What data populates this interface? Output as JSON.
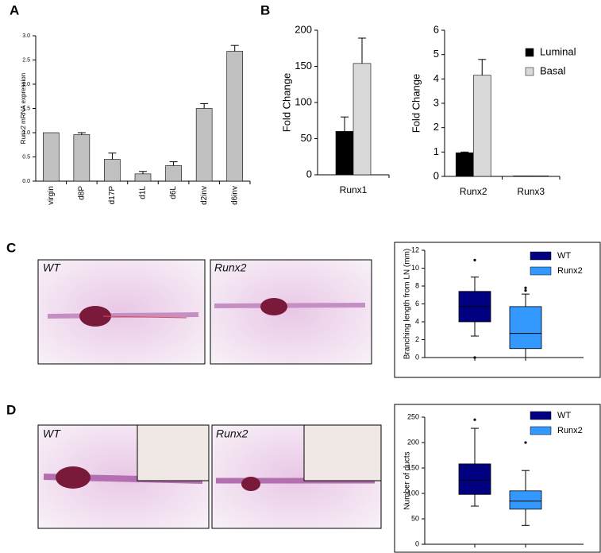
{
  "panel_labels": [
    "A",
    "B",
    "C",
    "D"
  ],
  "image_labels": {
    "C": [
      "WT",
      "Runx2"
    ],
    "D": [
      "WT",
      "Runx2"
    ]
  },
  "chart_data": [
    {
      "type": "bar",
      "y_label": "Runx2 mRNA expression",
      "categories": [
        "virgin",
        "d8P",
        "d17P",
        "d1L",
        "d6L",
        "d2inv",
        "d6inv"
      ],
      "values": [
        1.0,
        0.96,
        0.45,
        0.15,
        0.32,
        1.5,
        2.68
      ],
      "errors": [
        0,
        0.04,
        0.13,
        0.05,
        0.08,
        0.1,
        0.12
      ],
      "color": "#c0c0c0",
      "ylim": [
        0,
        3.0
      ],
      "yticks": [
        {
          "value": 0,
          "label": "0.0"
        },
        {
          "value": 0.5,
          "label": "0.5"
        },
        {
          "value": 1,
          "label": "1.0"
        },
        {
          "value": 1.5,
          "label": "1.5"
        },
        {
          "value": 2,
          "label": "2.0"
        },
        {
          "value": 2.5,
          "label": "2.5"
        },
        {
          "value": 3,
          "label": "3.0"
        }
      ]
    },
    {
      "type": "bar",
      "y_label": "Fold Change",
      "categories": [
        "Runx1"
      ],
      "series": [
        {
          "color": "#000000",
          "values": [
            60
          ],
          "errors": [
            20
          ]
        },
        {
          "color": "#d9d9d9",
          "values": [
            154
          ],
          "errors": [
            35
          ]
        }
      ],
      "ylim": [
        0,
        200
      ],
      "yticks": [
        0,
        50,
        100,
        150,
        200
      ]
    },
    {
      "type": "bar",
      "y_label": "Fold Change",
      "categories": [
        "Runx2",
        "Runx3"
      ],
      "series": [
        {
          "name": "Luminal",
          "color": "#000000",
          "values": [
            0.97,
            0.02
          ],
          "errors": [
            0.03,
            0
          ]
        },
        {
          "name": "Basal",
          "color": "#d9d9d9",
          "values": [
            4.15,
            0.02
          ],
          "errors": [
            0.65,
            0
          ]
        }
      ],
      "ylim": [
        0,
        6
      ],
      "yticks": [
        0,
        1,
        2,
        3,
        4,
        5,
        6
      ]
    },
    {
      "type": "box",
      "y_label": "Branching length from LN (mm)",
      "series": [
        {
          "name": "WT",
          "color": "#000080",
          "whislo": 2.4,
          "q1": 4.0,
          "med": 5.7,
          "q3": 7.4,
          "whishi": 9.0,
          "fliers": [
            0,
            10.9
          ]
        },
        {
          "name": "Runx2",
          "color": "#3399ff",
          "whislo": 0,
          "q1": 1.0,
          "med": 2.7,
          "q3": 5.7,
          "whishi": 7.1,
          "fliers": [
            7.5,
            7.8
          ]
        }
      ],
      "ylim": [
        0,
        12
      ],
      "yticks": [
        0,
        2,
        4,
        6,
        8,
        10,
        12
      ]
    },
    {
      "type": "box",
      "y_label": "Number of ducts",
      "series": [
        {
          "name": "WT",
          "color": "#000080",
          "whislo": 75,
          "q1": 98,
          "med": 126,
          "q3": 158,
          "whishi": 228,
          "fliers": [
            245
          ]
        },
        {
          "name": "Runx2",
          "color": "#3399ff",
          "whislo": 37,
          "q1": 69,
          "med": 85,
          "q3": 105,
          "whishi": 145,
          "fliers": [
            200
          ]
        }
      ],
      "ylim": [
        0,
        250
      ],
      "yticks": [
        0,
        50,
        100,
        150,
        200,
        250
      ]
    }
  ]
}
